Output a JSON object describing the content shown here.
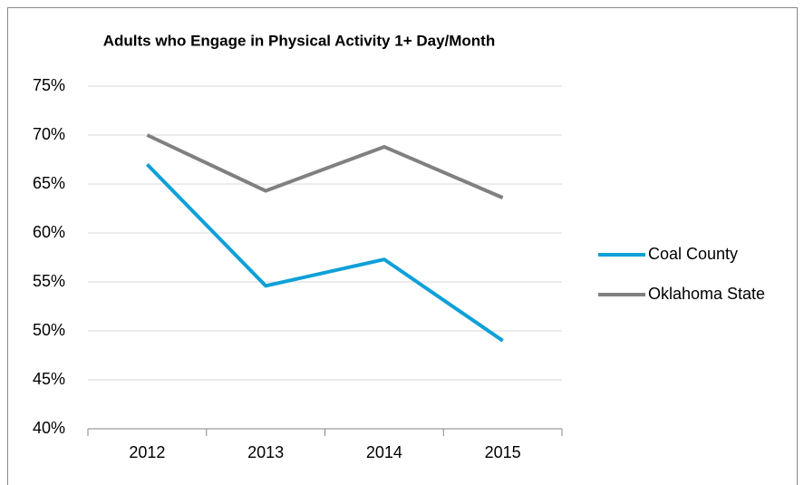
{
  "chart_data": {
    "type": "line",
    "title": "Adults who Engage in Physical Activity 1+ Day/Month",
    "categories": [
      "2012",
      "2013",
      "2014",
      "2015"
    ],
    "series": [
      {
        "name": "Coal County",
        "color": "#0fa0d8",
        "values": [
          67,
          54.6,
          57.3,
          49
        ]
      },
      {
        "name": "Oklahoma State",
        "color": "#808080",
        "values": [
          70,
          64.3,
          68.8,
          63.6
        ]
      }
    ],
    "ylim": [
      40,
      75
    ],
    "yticks": [
      {
        "value": 40,
        "label": "40%"
      },
      {
        "value": 45,
        "label": "45%"
      },
      {
        "value": 50,
        "label": "50%"
      },
      {
        "value": 55,
        "label": "55%"
      },
      {
        "value": 60,
        "label": "60%"
      },
      {
        "value": 65,
        "label": "65%"
      },
      {
        "value": 70,
        "label": "70%"
      },
      {
        "value": 75,
        "label": "75%"
      }
    ],
    "grid": true,
    "legend": "right"
  }
}
